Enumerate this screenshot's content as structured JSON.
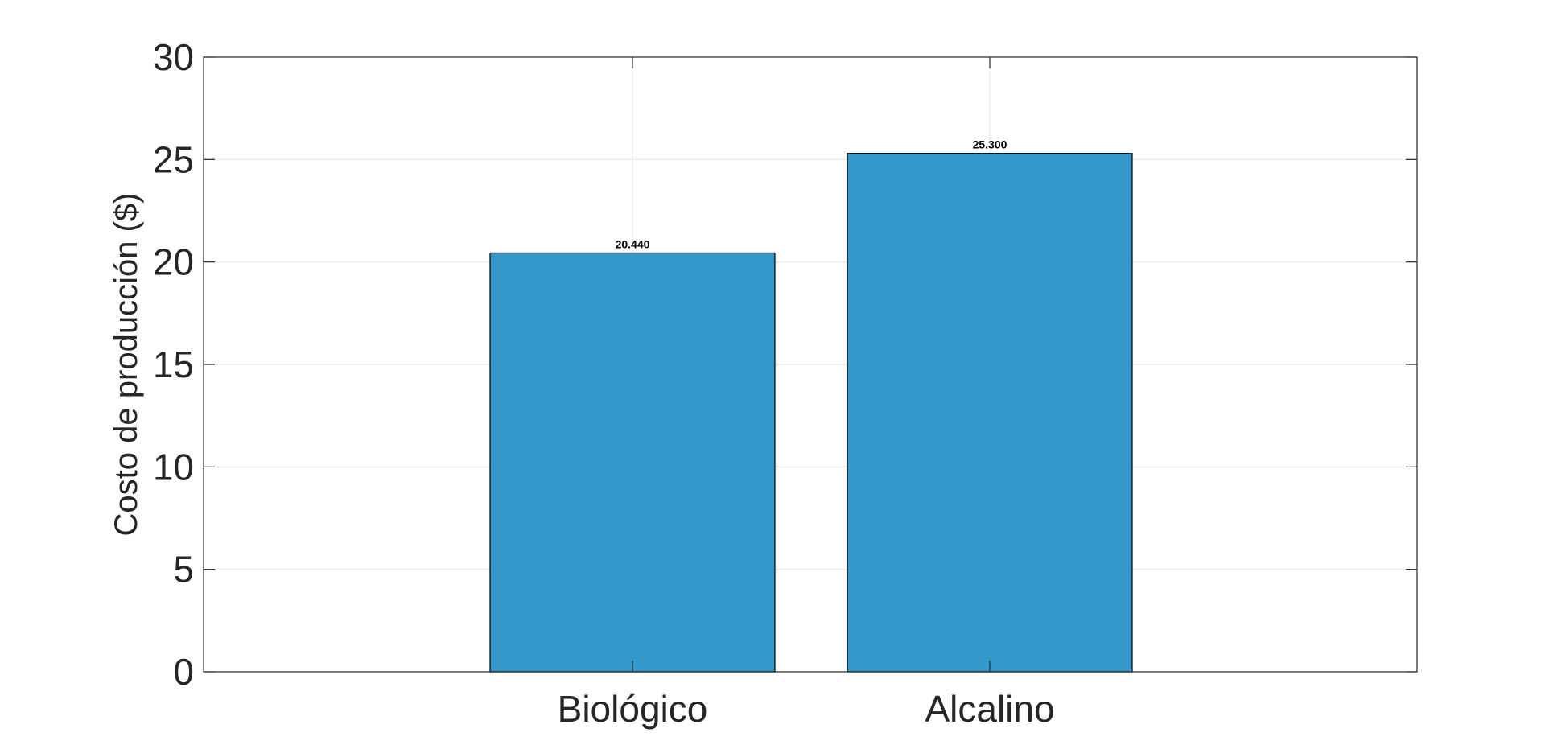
{
  "chart_data": {
    "type": "bar",
    "categories": [
      "Biológico",
      "Alcalino"
    ],
    "values": [
      20.44,
      25.3
    ],
    "data_labels": [
      "20.440",
      "25.300"
    ],
    "title": "",
    "xlabel": "",
    "ylabel": "Costo de producción ($)",
    "ylim": [
      0,
      30
    ],
    "yticks": [
      0,
      5,
      10,
      15,
      20,
      25,
      30
    ],
    "ytick_labels": [
      "0",
      "5",
      "10",
      "15",
      "20",
      "25",
      "30"
    ],
    "grid": true,
    "legend": "none",
    "colors": {
      "bar_fill": "#3498cb",
      "bar_edge": "#000000",
      "grid": "#e6e6e6",
      "axes": "#262626",
      "background": "#ffffff"
    }
  }
}
